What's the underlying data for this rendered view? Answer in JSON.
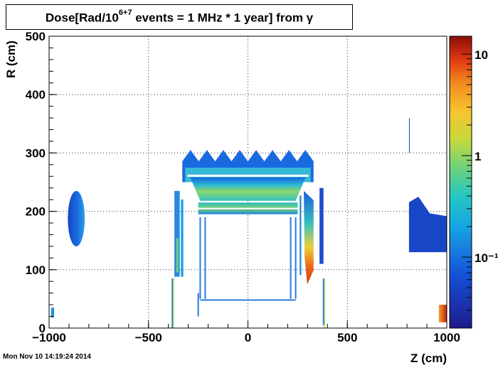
{
  "chart_data": {
    "type": "heatmap",
    "title": "Dose[Rad/10",
    "title_superscript": "6+7",
    "title_tail": " events = 1 MHz * 1 year] from γ",
    "xlabel": "Z (cm)",
    "ylabel": "R (cm)",
    "xlim": [
      -1000,
      1000
    ],
    "ylim": [
      0,
      500
    ],
    "xticks": [
      -1000,
      -500,
      0,
      500,
      1000
    ],
    "xtick_labels": [
      "−1000",
      "−500",
      "0",
      "500",
      "1000"
    ],
    "yticks": [
      0,
      100,
      200,
      300,
      400,
      500
    ],
    "ytick_labels": [
      "0",
      "100",
      "200",
      "300",
      "400",
      "500"
    ],
    "grid": true,
    "colorbar": {
      "scale": "log",
      "range": [
        0.02,
        15
      ],
      "ticks": [
        0.1,
        1,
        10
      ],
      "tick_labels": [
        "10⁻¹",
        "1",
        "10"
      ]
    },
    "regions": [
      {
        "name": "left-endcap-blob",
        "z": [
          -910,
          -825
        ],
        "r": [
          140,
          235
        ],
        "dose": 0.08
      },
      {
        "name": "barrel-top-fringe",
        "z": [
          -330,
          330
        ],
        "r": [
          250,
          305
        ],
        "dose": 0.06
      },
      {
        "name": "barrel-upper-layer",
        "z": [
          -290,
          290
        ],
        "r": [
          218,
          258
        ],
        "dose": 0.4
      },
      {
        "name": "barrel-lower-layer",
        "z": [
          -250,
          250
        ],
        "r": [
          195,
          215
        ],
        "dose": 0.3
      },
      {
        "name": "left-inner-wall",
        "z": [
          -370,
          -310
        ],
        "r": [
          88,
          235
        ],
        "dose": 0.2
      },
      {
        "name": "right-inner-wall",
        "z": [
          260,
          330
        ],
        "r": [
          75,
          235
        ],
        "dose": 1.5
      },
      {
        "name": "right-outer-strip",
        "z": [
          360,
          400
        ],
        "r": [
          110,
          240
        ],
        "dose": 0.05
      },
      {
        "name": "right-endcap-blob",
        "z": [
          810,
          1000
        ],
        "r": [
          130,
          225
        ],
        "dose": 0.04
      },
      {
        "name": "right-upper-spike",
        "z": [
          810,
          820
        ],
        "r": [
          300,
          385
        ],
        "dose": 0.05
      },
      {
        "name": "left-beamline-spot",
        "z": [
          -990,
          -975
        ],
        "r": [
          18,
          35
        ],
        "dose": 0.08
      },
      {
        "name": "right-beamline-hotspot",
        "z": [
          960,
          1000
        ],
        "r": [
          10,
          40
        ],
        "dose": 6
      }
    ],
    "timestamp": "Mon Nov 10 14:19:24 2014"
  }
}
